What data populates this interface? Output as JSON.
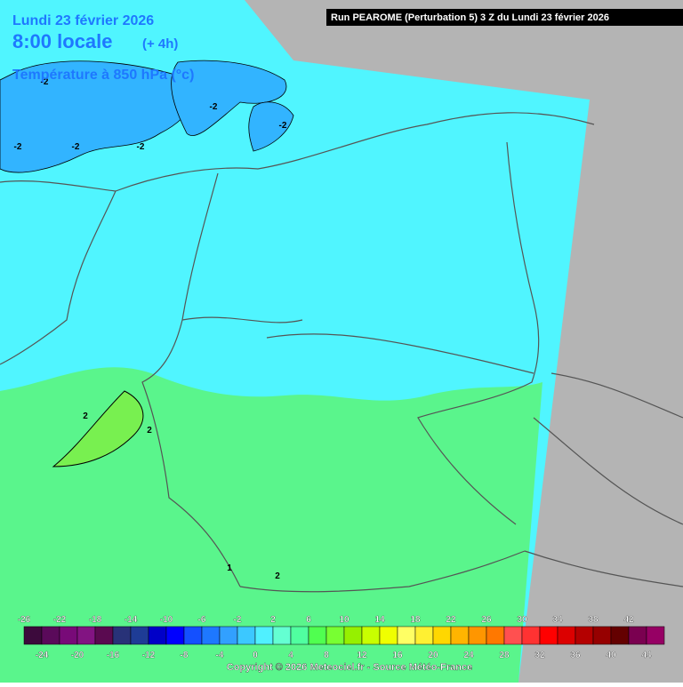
{
  "header": {
    "date": "Lundi 23 février 2026",
    "time": "8:00 locale",
    "offset": "(+ 4h)",
    "parameter": "Température à 850 hPa (°c)",
    "run": "Run PEAROME (Perturbation 5) 3 Z du Lundi 23 février 2026"
  },
  "contour_labels": [
    "-2",
    "-2",
    "-2",
    "-2",
    "-2",
    "-2",
    "2",
    "2",
    "2",
    "1"
  ],
  "legend": {
    "upper_ticks": [
      -26,
      -22,
      -18,
      -14,
      -10,
      -6,
      -2,
      2,
      6,
      10,
      14,
      18,
      22,
      26,
      30,
      34,
      38,
      42
    ],
    "lower_ticks": [
      -24,
      -20,
      -16,
      -12,
      -8,
      -4,
      0,
      4,
      8,
      12,
      16,
      20,
      24,
      28,
      32,
      36,
      40,
      44
    ],
    "colors": [
      "#3c0a3c",
      "#5a0a5a",
      "#780a78",
      "#821482",
      "#5a0a50",
      "#283278",
      "#1e3c96",
      "#0000c8",
      "#0000ff",
      "#1450ff",
      "#1e78ff",
      "#32a0ff",
      "#3cc8ff",
      "#50f0ff",
      "#64ffd2",
      "#50ffa0",
      "#50ff50",
      "#78ff32",
      "#96f000",
      "#c8ff00",
      "#f0ff00",
      "#ffff64",
      "#fff032",
      "#ffd700",
      "#ffb400",
      "#ff9600",
      "#ff7800",
      "#ff5050",
      "#ff3232",
      "#ff0000",
      "#dc0000",
      "#b40000",
      "#960000",
      "#640000",
      "#7a0050",
      "#960064"
    ]
  },
  "footer": {
    "copyright": "Copyright © 2026 Meteociel.fr - Source Météo-France"
  }
}
